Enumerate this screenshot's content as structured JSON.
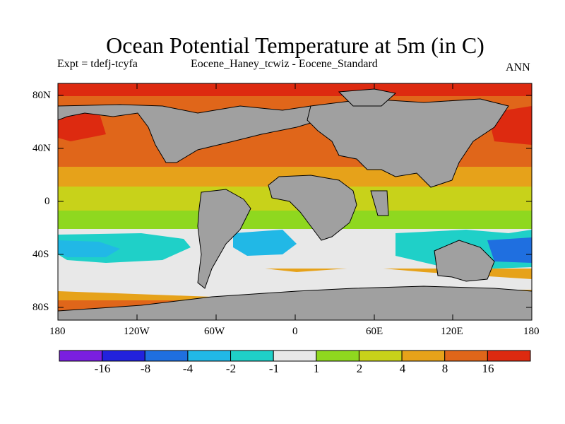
{
  "title": "Ocean Potential Temperature at 5m (in C)",
  "subtitle_left": "Expt = tdefj-tcyfa",
  "subtitle_center": "Eocene_Haney_tcwiz - Eocene_Standard",
  "subtitle_right": "ANN",
  "y_ticks": [
    "80N",
    "40N",
    "0",
    "40S",
    "80S"
  ],
  "x_ticks": [
    "180",
    "120W",
    "60W",
    "0",
    "60E",
    "120E",
    "180"
  ],
  "colorbar": {
    "labels": [
      "-16",
      "-8",
      "-4",
      "-2",
      "-1",
      "1",
      "2",
      "4",
      "8",
      "16"
    ],
    "colors": [
      "#7a1fe0",
      "#2222dd",
      "#1f6fe0",
      "#21b8e6",
      "#1fd0c8",
      "#e8e8e8",
      "#8fd81f",
      "#c8d21a",
      "#e6a21a",
      "#e0661a",
      "#dd2a10"
    ]
  },
  "colors": {
    "land": "#a0a0a0",
    "ocean_warm": "#e0661a",
    "ocean_red": "#dd2a10",
    "ocean_orange": "#e6a21a",
    "ocean_yellow": "#c8d21a",
    "ocean_green": "#8fd81f",
    "ocean_white": "#e8e8e8",
    "ocean_cyan": "#1fd0c8",
    "ocean_lightblue": "#21b8e6",
    "ocean_blue": "#1f6fe0"
  }
}
